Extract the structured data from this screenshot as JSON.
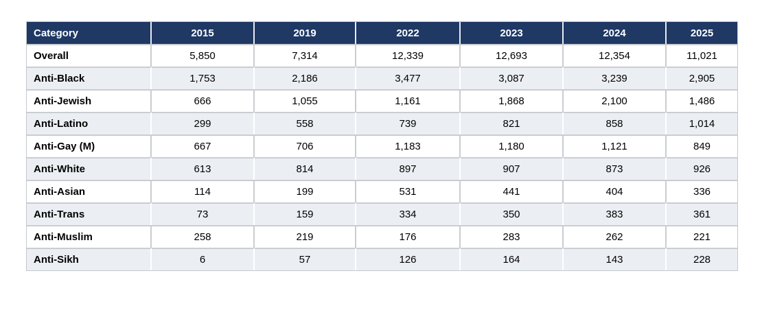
{
  "chart_data": {
    "type": "table",
    "columns": [
      "Category",
      "2015",
      "2019",
      "2022",
      "2023",
      "2024",
      "2025"
    ],
    "rows": [
      {
        "category": "Overall",
        "values": [
          "5,850",
          "7,314",
          "12,339",
          "12,693",
          "12,354",
          "11,021"
        ]
      },
      {
        "category": "Anti-Black",
        "values": [
          "1,753",
          "2,186",
          "3,477",
          "3,087",
          "3,239",
          "2,905"
        ]
      },
      {
        "category": "Anti-Jewish",
        "values": [
          "666",
          "1,055",
          "1,161",
          "1,868",
          "2,100",
          "1,486"
        ]
      },
      {
        "category": "Anti-Latino",
        "values": [
          "299",
          "558",
          "739",
          "821",
          "858",
          "1,014"
        ]
      },
      {
        "category": "Anti-Gay (M)",
        "values": [
          "667",
          "706",
          "1,183",
          "1,180",
          "1,121",
          "849"
        ]
      },
      {
        "category": "Anti-White",
        "values": [
          "613",
          "814",
          "897",
          "907",
          "873",
          "926"
        ]
      },
      {
        "category": "Anti-Asian",
        "values": [
          "114",
          "199",
          "531",
          "441",
          "404",
          "336"
        ]
      },
      {
        "category": "Anti-Trans",
        "values": [
          "73",
          "159",
          "334",
          "350",
          "383",
          "361"
        ]
      },
      {
        "category": "Anti-Muslim",
        "values": [
          "258",
          "219",
          "176",
          "283",
          "262",
          "221"
        ]
      },
      {
        "category": "Anti-Sikh",
        "values": [
          "6",
          "57",
          "126",
          "164",
          "143",
          "228"
        ]
      }
    ],
    "layout": {
      "legend": "none",
      "grid": "cell borders",
      "striped_rows": "alternating, starting with second data row"
    },
    "colors": {
      "header_bg": "#1F3864",
      "header_text": "#FFFFFF",
      "stripe_bg": "#EBEFF3",
      "row_bg": "#FFFFFF",
      "border": "#C9CDD2",
      "text": "#000000"
    }
  }
}
